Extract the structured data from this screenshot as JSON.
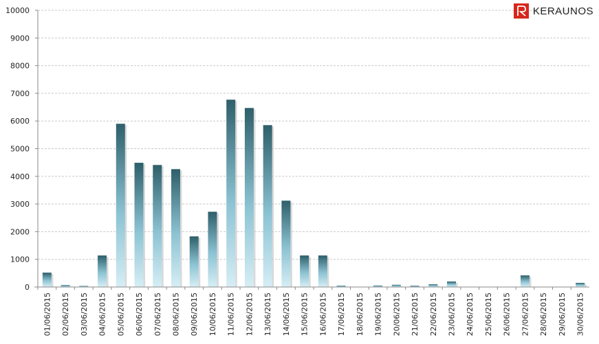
{
  "brand": {
    "name": "KERAUNOS",
    "accent_color": "#d7281c"
  },
  "chart_data": {
    "type": "bar",
    "title": "",
    "xlabel": "",
    "ylabel": "",
    "ylim": [
      0,
      10000
    ],
    "yticks": [
      0,
      1000,
      2000,
      3000,
      4000,
      5000,
      6000,
      7000,
      8000,
      9000,
      10000
    ],
    "grid": true,
    "legend": "none",
    "categories": [
      "01/06/2015",
      "02/06/2015",
      "03/06/2015",
      "04/06/2015",
      "05/06/2015",
      "06/06/2015",
      "07/06/2015",
      "08/06/2015",
      "09/06/2015",
      "10/06/2015",
      "11/06/2015",
      "12/06/2015",
      "13/06/2015",
      "14/06/2015",
      "15/06/2015",
      "16/06/2015",
      "17/06/2015",
      "18/06/2015",
      "19/06/2015",
      "20/06/2015",
      "21/06/2015",
      "22/06/2015",
      "23/06/2015",
      "24/06/2015",
      "25/06/2015",
      "26/06/2015",
      "27/06/2015",
      "28/06/2015",
      "29/06/2015",
      "30/06/2015"
    ],
    "values": [
      520,
      70,
      40,
      1140,
      5900,
      4490,
      4410,
      4260,
      1830,
      2720,
      6770,
      6470,
      5850,
      3120,
      1140,
      1140,
      50,
      5,
      55,
      80,
      50,
      100,
      200,
      5,
      5,
      10,
      420,
      5,
      5,
      150
    ],
    "bar_color_top": "#2e5f6a",
    "bar_color_bottom": "#d6eef5"
  }
}
